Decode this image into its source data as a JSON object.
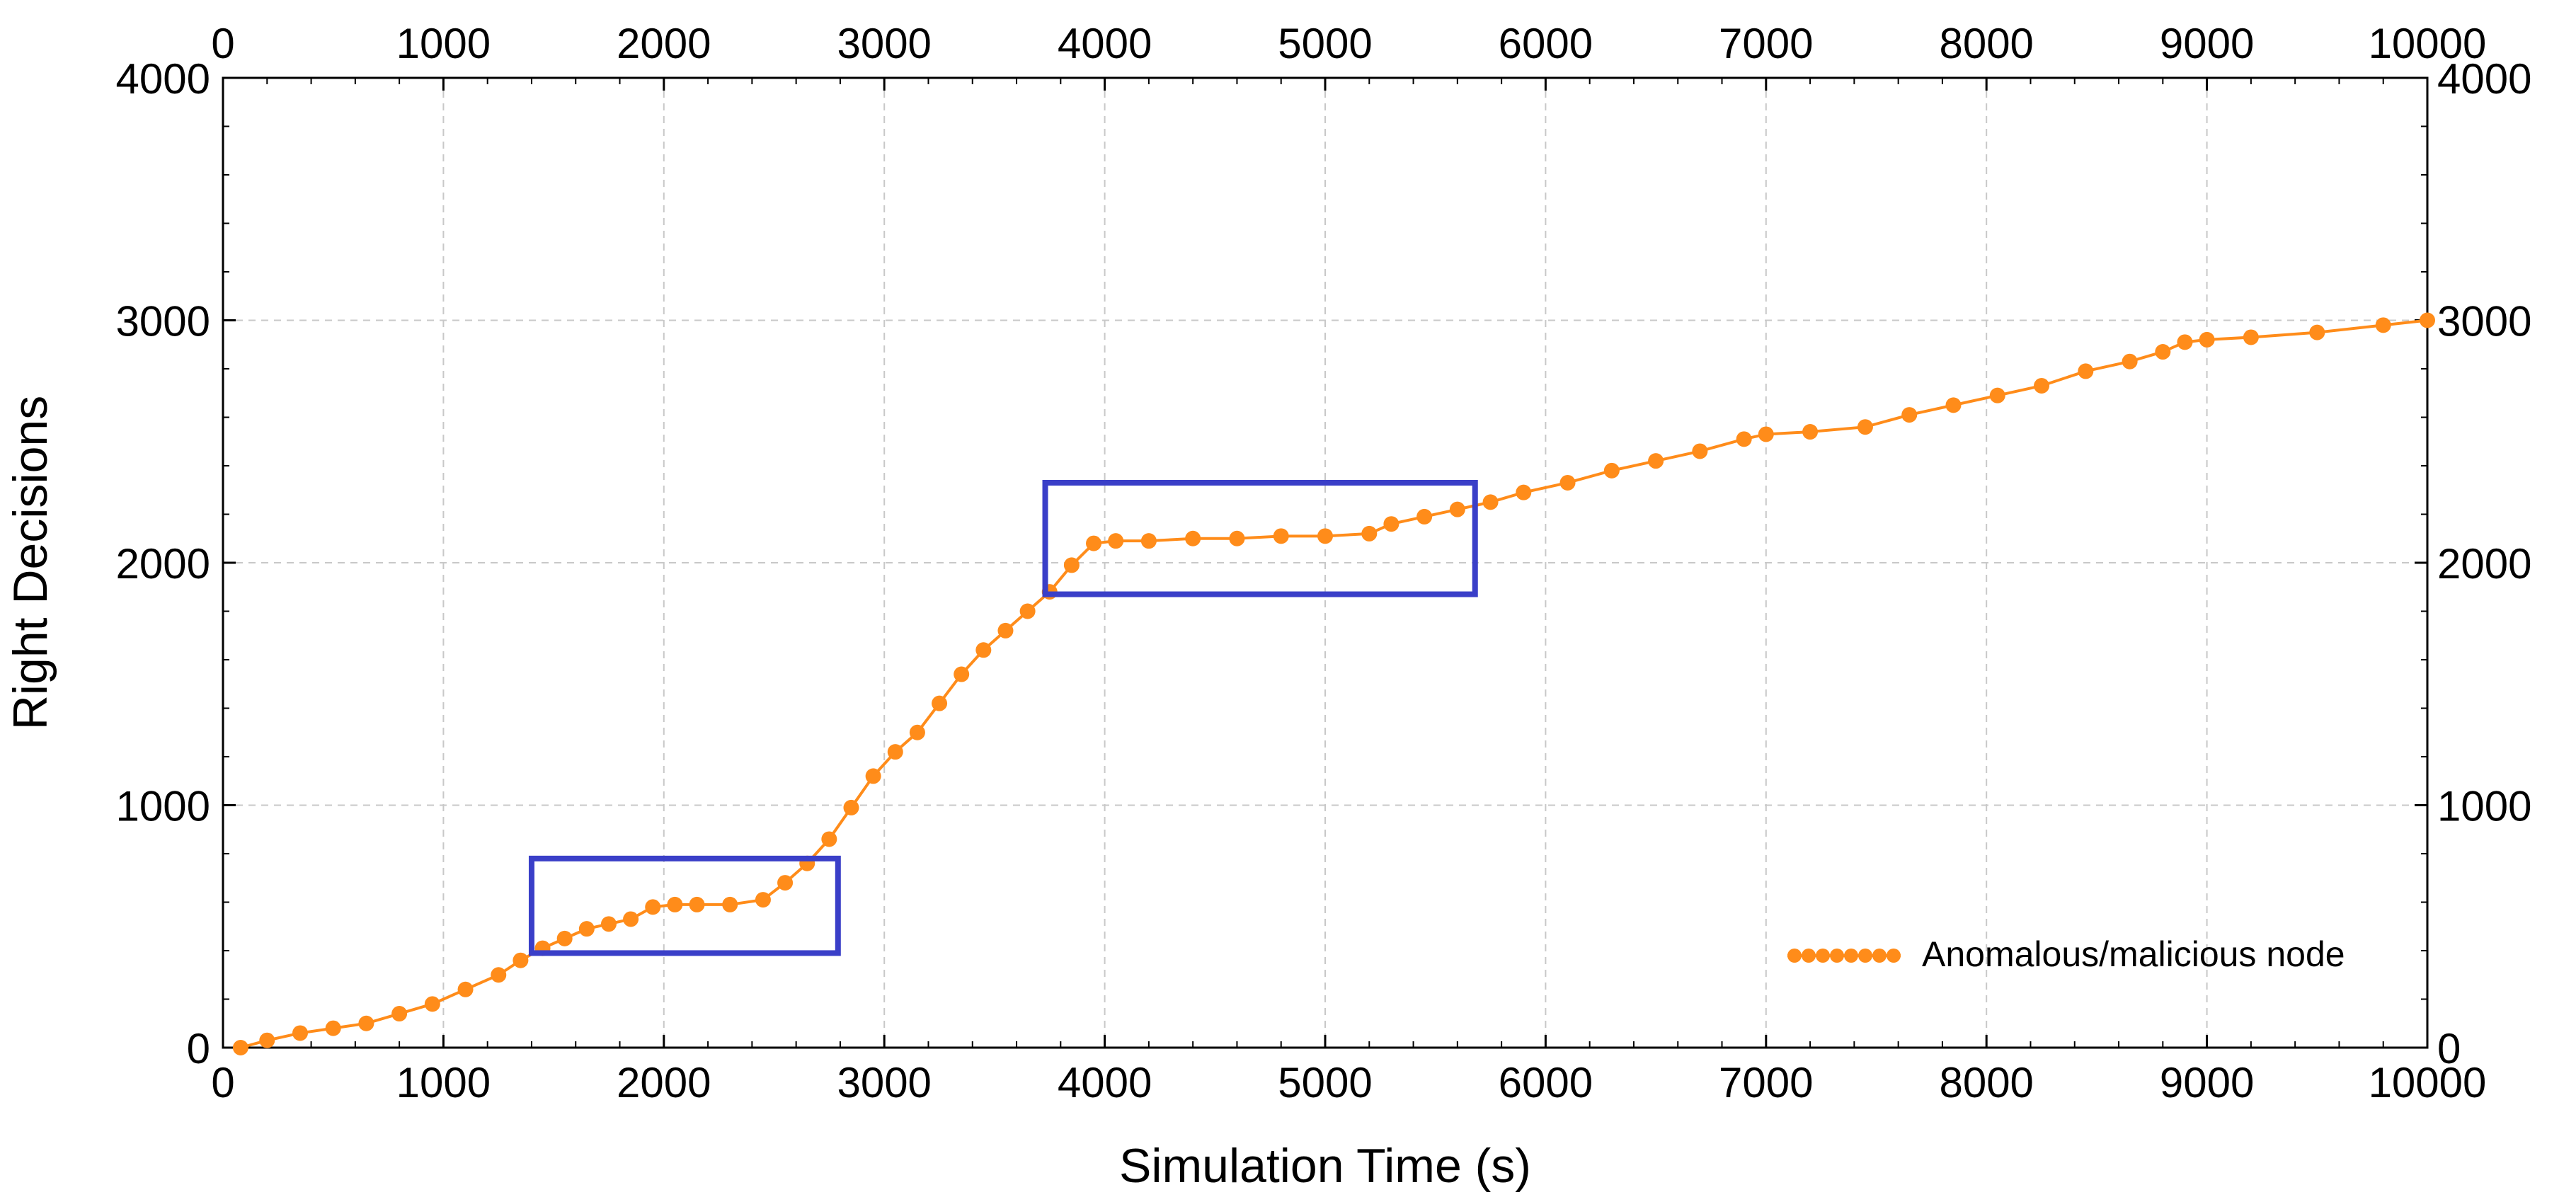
{
  "chart_data": {
    "type": "line",
    "xlabel": "Simulation Time (s)",
    "ylabel": "Right Decisions",
    "xlim": [
      0,
      10000
    ],
    "ylim": [
      0,
      4000
    ],
    "xticks": [
      0,
      1000,
      2000,
      3000,
      4000,
      5000,
      6000,
      7000,
      8000,
      9000,
      10000
    ],
    "yticks": [
      0,
      1000,
      2000,
      3000,
      4000
    ],
    "grid": true,
    "legend_position": "bottom-right",
    "colors": {
      "series": "#ff8c1a",
      "highlight": "#3a3fc8",
      "grid": "#c8c8c8"
    },
    "series": [
      {
        "name": "Anomalous/malicious node",
        "x": [
          80,
          200,
          350,
          500,
          650,
          800,
          950,
          1100,
          1250,
          1350,
          1450,
          1550,
          1650,
          1750,
          1850,
          1950,
          2050,
          2150,
          2300,
          2450,
          2550,
          2650,
          2750,
          2850,
          2950,
          3050,
          3150,
          3250,
          3350,
          3450,
          3550,
          3650,
          3750,
          3850,
          3950,
          4050,
          4200,
          4400,
          4600,
          4800,
          5000,
          5200,
          5300,
          5450,
          5600,
          5750,
          5900,
          6100,
          6300,
          6500,
          6700,
          6900,
          7000,
          7200,
          7450,
          7650,
          7850,
          8050,
          8250,
          8450,
          8650,
          8800,
          8900,
          9000,
          9200,
          9500,
          9800,
          10000
        ],
        "y": [
          0,
          30,
          60,
          80,
          100,
          140,
          180,
          240,
          300,
          360,
          410,
          450,
          490,
          510,
          530,
          580,
          590,
          590,
          590,
          610,
          680,
          760,
          860,
          990,
          1120,
          1220,
          1300,
          1420,
          1540,
          1640,
          1720,
          1800,
          1880,
          1990,
          2080,
          2090,
          2090,
          2100,
          2100,
          2110,
          2110,
          2120,
          2160,
          2190,
          2220,
          2250,
          2290,
          2330,
          2380,
          2420,
          2460,
          2510,
          2530,
          2540,
          2560,
          2610,
          2650,
          2690,
          2730,
          2790,
          2830,
          2870,
          2910,
          2920,
          2930,
          2950,
          2980,
          3000
        ]
      }
    ],
    "annotations": [
      {
        "type": "rectangle",
        "x": [
          1400,
          2790
        ],
        "y": [
          390,
          780
        ]
      },
      {
        "type": "rectangle",
        "x": [
          3730,
          5680
        ],
        "y": [
          1870,
          2330
        ]
      }
    ]
  }
}
